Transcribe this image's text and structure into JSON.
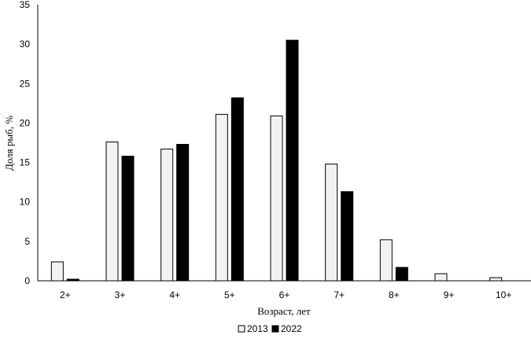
{
  "chart_data": {
    "type": "bar",
    "title": "",
    "xlabel": "Возраст,  лет",
    "ylabel": "Доля рыб, %",
    "ylim": [
      0,
      35
    ],
    "yticks": [
      0,
      5,
      10,
      15,
      20,
      25,
      30,
      35
    ],
    "categories": [
      "2+",
      "3+",
      "4+",
      "5+",
      "6+",
      "7+",
      "8+",
      "9+",
      "10+"
    ],
    "series": [
      {
        "name": "2013",
        "color": "#f2f2f2",
        "stroke": "#000000",
        "values": [
          2.4,
          17.6,
          16.7,
          21.1,
          20.9,
          14.8,
          5.2,
          0.9,
          0.4
        ]
      },
      {
        "name": "2022",
        "color": "#000000",
        "stroke": "#000000",
        "values": [
          0.2,
          15.8,
          17.3,
          23.2,
          30.5,
          11.3,
          1.7,
          0,
          0
        ]
      }
    ],
    "legend_position": "bottom",
    "grid": false
  }
}
